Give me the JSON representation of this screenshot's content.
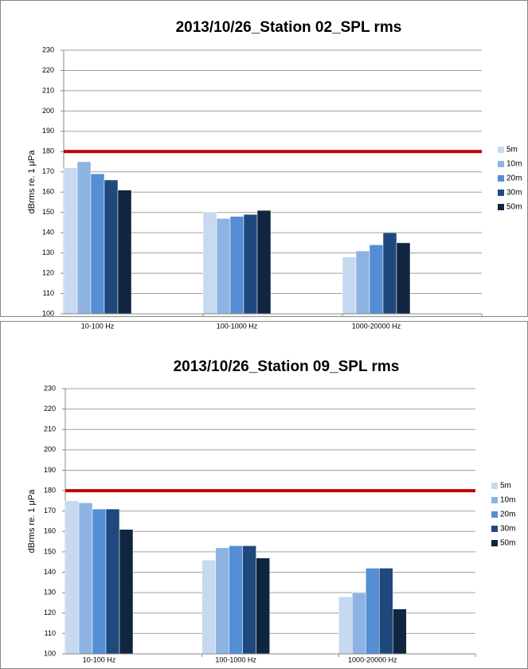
{
  "chart_data": [
    {
      "type": "bar",
      "title": "2013/10/26_Station 02_SPL rms",
      "y_label": "dBrms re. 1 μPa",
      "categories": [
        "10-100 Hz",
        "100-1000 Hz",
        "1000-20000 Hz"
      ],
      "series": [
        {
          "name": "5m",
          "color": "#c6d9f1",
          "values": [
            172,
            150,
            128
          ]
        },
        {
          "name": "10m",
          "color": "#8db3e2",
          "values": [
            175,
            147,
            131
          ]
        },
        {
          "name": "20m",
          "color": "#558ed5",
          "values": [
            169,
            148,
            134
          ]
        },
        {
          "name": "30m",
          "color": "#1f497d",
          "values": [
            166,
            149,
            140
          ]
        },
        {
          "name": "50m",
          "color": "#10253f",
          "values": [
            161,
            151,
            135
          ]
        }
      ],
      "ylim": [
        100,
        230
      ],
      "yticks": [
        100,
        110,
        120,
        130,
        140,
        150,
        160,
        170,
        180,
        190,
        200,
        210,
        220,
        230
      ],
      "grid": true,
      "reference_line": {
        "value": 180,
        "color": "#c00000"
      },
      "legend": "right"
    },
    {
      "type": "bar",
      "title": "2013/10/26_Station 09_SPL rms",
      "y_label": "dBrms re. 1 μPa",
      "categories": [
        "10-100 Hz",
        "100-1000 Hz",
        "1000-20000 Hz"
      ],
      "series": [
        {
          "name": "5m",
          "color": "#c6d9f1",
          "values": [
            175,
            146,
            128
          ]
        },
        {
          "name": "10m",
          "color": "#8db3e2",
          "values": [
            174,
            152,
            130
          ]
        },
        {
          "name": "20m",
          "color": "#558ed5",
          "values": [
            171,
            153,
            142
          ]
        },
        {
          "name": "30m",
          "color": "#1f497d",
          "values": [
            171,
            153,
            142
          ]
        },
        {
          "name": "50m",
          "color": "#10253f",
          "values": [
            161,
            147,
            122
          ]
        }
      ],
      "ylim": [
        100,
        230
      ],
      "yticks": [
        100,
        110,
        120,
        130,
        140,
        150,
        160,
        170,
        180,
        190,
        200,
        210,
        220,
        230
      ],
      "grid": true,
      "reference_line": {
        "value": 180,
        "color": "#c00000"
      },
      "legend": "right"
    }
  ]
}
